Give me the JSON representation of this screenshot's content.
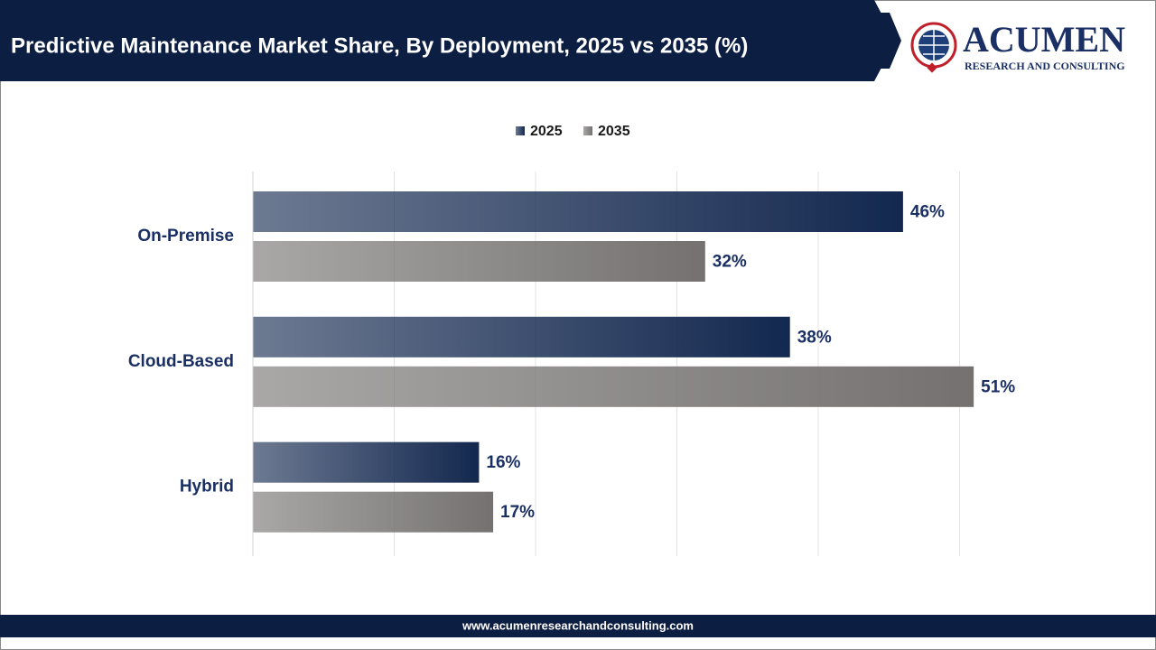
{
  "header": {
    "brand": "ACUMEN",
    "tagline": "RESEARCH AND CONSULTING"
  },
  "footer": {
    "url": "www.acumenresearchandconsulting.com"
  },
  "chart_data": {
    "type": "hbar",
    "title": "Predictive Maintenance Market Share, By Deployment, 2025 vs 2035 (%)",
    "categories": [
      "On-Premise",
      "Cloud-Based",
      "Hybrid"
    ],
    "series": [
      {
        "name": "2025",
        "color": "#13284f",
        "values": [
          46,
          38,
          16
        ],
        "value_labels": [
          "46%",
          "38%",
          "16%"
        ]
      },
      {
        "name": "2035",
        "color": "#757171",
        "values": [
          32,
          51,
          17
        ],
        "value_labels": [
          "32%",
          "51%",
          "17%"
        ]
      }
    ],
    "xlim": [
      0,
      60
    ],
    "xticks": [
      0,
      10,
      20,
      30,
      40,
      50
    ],
    "grid": true,
    "legend": "top"
  }
}
